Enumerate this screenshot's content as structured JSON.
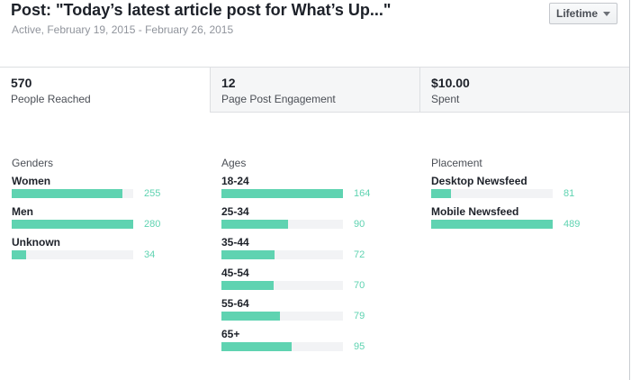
{
  "header": {
    "title": "Post: \"Today’s latest article post for What’s Up...\"",
    "subtitle": "Active, February 19, 2015 - February 26, 2015",
    "range_button": "Lifetime"
  },
  "tabs": [
    {
      "value": "570",
      "label": "People Reached"
    },
    {
      "value": "12",
      "label": "Page Post Engagement"
    },
    {
      "value": "$10.00",
      "label": "Spent"
    }
  ],
  "colors": {
    "bar": "#5fd3b1",
    "track": "#f2f3f5"
  },
  "genders": {
    "heading": "Genders",
    "rows": [
      {
        "label": "Women",
        "value": 255
      },
      {
        "label": "Men",
        "value": 280
      },
      {
        "label": "Unknown",
        "value": 34
      }
    ]
  },
  "ages": {
    "heading": "Ages",
    "rows": [
      {
        "label": "18-24",
        "value": 164
      },
      {
        "label": "25-34",
        "value": 90
      },
      {
        "label": "35-44",
        "value": 72
      },
      {
        "label": "45-54",
        "value": 70
      },
      {
        "label": "55-64",
        "value": 79
      },
      {
        "label": "65+",
        "value": 95
      }
    ]
  },
  "placement": {
    "heading": "Placement",
    "rows": [
      {
        "label": "Desktop Newsfeed",
        "value": 81
      },
      {
        "label": "Mobile Newsfeed",
        "value": 489
      }
    ]
  }
}
